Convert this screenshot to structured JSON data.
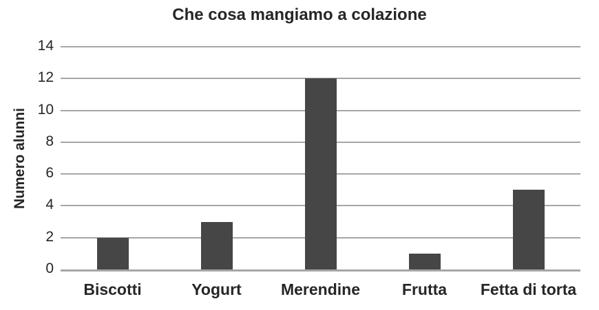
{
  "chart_data": {
    "type": "bar",
    "title": "Che cosa mangiamo a colazione",
    "categories": [
      "Biscotti",
      "Yogurt",
      "Merendine",
      "Frutta",
      "Fetta di torta"
    ],
    "values": [
      2,
      3,
      12,
      1,
      5
    ],
    "xlabel": "",
    "ylabel": "Numero alunni",
    "ylim": [
      0,
      14
    ],
    "yticks": [
      0,
      2,
      4,
      6,
      8,
      10,
      12,
      14
    ],
    "grid": true,
    "legend": false,
    "legend_position": "none",
    "bar_color": "#464646",
    "gridline_color": "#a6a6a6",
    "axis_line_color": "#a6a6a6",
    "text_color": "#262626",
    "background_color": "#ffffff"
  }
}
